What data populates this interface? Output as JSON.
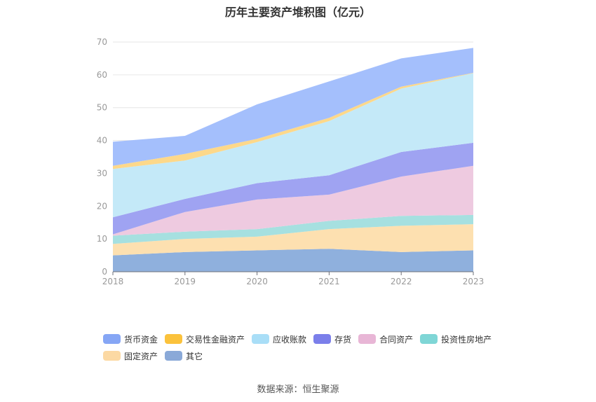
{
  "chart_data": {
    "type": "area",
    "title": "历年主要资产堆积图（亿元）",
    "x": [
      "2018",
      "2019",
      "2020",
      "2021",
      "2022",
      "2023"
    ],
    "ylim": [
      0,
      70
    ],
    "yticks": [
      "0",
      "10",
      "20",
      "30",
      "40",
      "50",
      "60",
      "70"
    ],
    "grid": true,
    "stacked": true,
    "legend_position": "bottom",
    "series": [
      {
        "name": "其它",
        "color": "#8fb0dd",
        "values": [
          5.0,
          6.0,
          6.5,
          7.0,
          6.0,
          6.5
        ]
      },
      {
        "name": "固定资产",
        "color": "#fde0b0",
        "values": [
          3.5,
          4.0,
          4.2,
          6.0,
          8.0,
          8.0
        ]
      },
      {
        "name": "投资性房地产",
        "color": "#a6e0e0",
        "values": [
          2.5,
          2.2,
          2.3,
          2.5,
          3.0,
          2.8
        ]
      },
      {
        "name": "合同资产",
        "color": "#eecae0",
        "values": [
          0.4,
          6.0,
          9.0,
          8.0,
          12.0,
          15.0
        ]
      },
      {
        "name": "存货",
        "color": "#9fa3f2",
        "values": [
          5.2,
          4.0,
          5.0,
          5.9,
          7.5,
          7.0
        ]
      },
      {
        "name": "应收账款",
        "color": "#c4e9f8",
        "values": [
          14.7,
          11.7,
          12.5,
          16.5,
          19.3,
          21.2
        ]
      },
      {
        "name": "交易性金融资产",
        "color": "#fdd88a",
        "values": [
          1.0,
          2.0,
          1.0,
          1.0,
          0.6,
          0.1
        ]
      },
      {
        "name": "货币资金",
        "color": "#a4bffc",
        "values": [
          7.3,
          5.5,
          10.5,
          11.1,
          8.6,
          7.6
        ]
      }
    ],
    "legend_order": [
      "货币资金",
      "交易性金融资产",
      "应收账款",
      "存货",
      "合同资产",
      "投资性房地产",
      "固定资产",
      "其它"
    ],
    "legend_colors": {
      "货币资金": "#86a6f5",
      "交易性金融资产": "#fbc23c",
      "应收账款": "#a9def7",
      "存货": "#7b7fea",
      "合同资产": "#e8b6d6",
      "投资性房地产": "#7fd6d6",
      "固定资产": "#fcd9a3",
      "其它": "#8aa9d8"
    }
  },
  "source": "数据来源：恒生聚源"
}
